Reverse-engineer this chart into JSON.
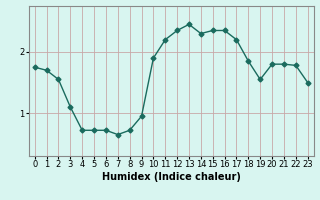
{
  "x": [
    0,
    1,
    2,
    3,
    4,
    5,
    6,
    7,
    8,
    9,
    10,
    11,
    12,
    13,
    14,
    15,
    16,
    17,
    18,
    19,
    20,
    21,
    22,
    23
  ],
  "y": [
    1.75,
    1.7,
    1.55,
    1.1,
    0.72,
    0.72,
    0.72,
    0.65,
    0.72,
    0.95,
    1.9,
    2.2,
    2.35,
    2.45,
    2.3,
    2.35,
    2.35,
    2.2,
    1.85,
    1.55,
    1.8,
    1.8,
    1.78,
    1.5
  ],
  "line_color": "#1a6b5e",
  "marker": "D",
  "marker_size": 2.5,
  "linewidth": 1.0,
  "bg_color": "#d8f5f0",
  "grid_color_v": "#c8a8a8",
  "grid_color_h": "#c8a8a8",
  "xlabel": "Humidex (Indice chaleur)",
  "xlabel_fontsize": 7,
  "yticks": [
    1,
    2
  ],
  "xticks": [
    0,
    1,
    2,
    3,
    4,
    5,
    6,
    7,
    8,
    9,
    10,
    11,
    12,
    13,
    14,
    15,
    16,
    17,
    18,
    19,
    20,
    21,
    22,
    23
  ],
  "ylim": [
    0.3,
    2.75
  ],
  "xlim": [
    -0.5,
    23.5
  ],
  "tick_fontsize": 6.0,
  "spine_color": "#888888"
}
